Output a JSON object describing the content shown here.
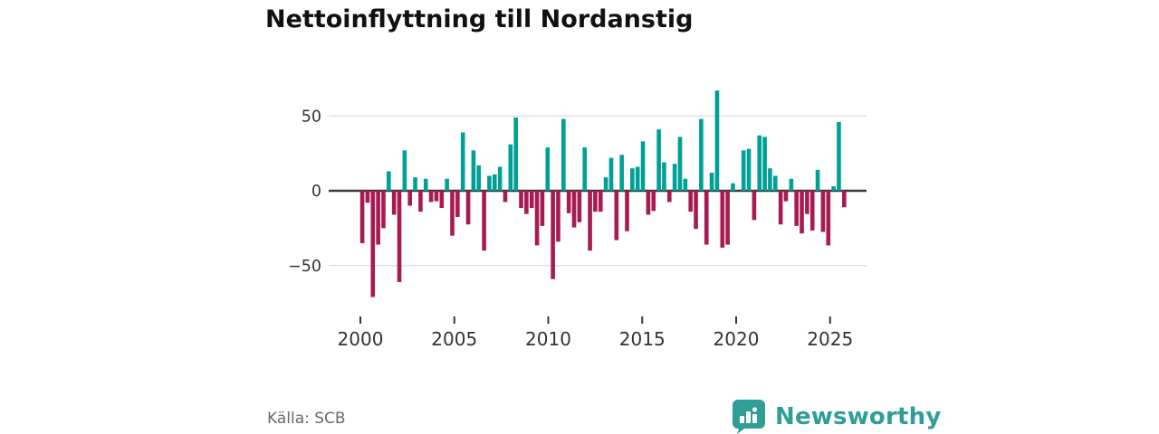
{
  "title": "Nettoinflyttning till Nordanstig",
  "source": "Källa: SCB",
  "brand": {
    "name": "Newsworthy",
    "color": "#2f9e96",
    "icon": "bar-chart-speech-bubble"
  },
  "colors": {
    "positive_bar": "#00a096",
    "negative_bar": "#a81b52",
    "zero_line": "#3b3b3b",
    "grid_line": "#dddddd",
    "title_text": "#111111",
    "axis_text": "#333333",
    "source_text": "#666a6e",
    "background": "#ffffff"
  },
  "chart_data": {
    "type": "bar",
    "title": "Nettoinflyttning till Nordanstig",
    "xlabel": "",
    "ylabel": "",
    "x_ticks": [
      "2000",
      "2005",
      "2010",
      "2015",
      "2020",
      "2025"
    ],
    "x_tick_years": [
      2000,
      2005,
      2010,
      2015,
      2020,
      2025
    ],
    "y_ticks": [
      "50",
      "0",
      "−50"
    ],
    "y_tick_values": [
      50,
      0,
      -50
    ],
    "ylim": [
      -75,
      70
    ],
    "x_span_years": [
      2000.1,
      2025.75
    ],
    "grid": "horizontal",
    "legend": "none",
    "series_note": "net migration per period, teal = positive, crimson = negative",
    "values": [
      -35,
      -8,
      -71,
      -36,
      -25,
      13,
      -16,
      -61,
      27,
      -10,
      9,
      -14,
      8,
      -7.5,
      -7,
      -11.5,
      8,
      -30,
      -17.5,
      39,
      -22.5,
      27,
      17,
      -40,
      10,
      11,
      16,
      -7.5,
      31,
      49,
      -11.5,
      -15.5,
      -11.5,
      -36.5,
      -23.5,
      29,
      -59,
      -34,
      48,
      -15,
      -24.5,
      -21,
      29,
      -40,
      -14,
      -14,
      9,
      22,
      -33,
      24,
      -27,
      15,
      16,
      33,
      -16,
      -13.5,
      41,
      19,
      -7.5,
      18,
      36,
      8,
      -14,
      -25.5,
      48,
      -36,
      12,
      67,
      -38,
      -36,
      5,
      0,
      27,
      28,
      -19.5,
      37,
      36,
      15,
      10,
      -22.5,
      -7,
      8,
      -23.5,
      -28.5,
      -15.5,
      -26.5,
      14,
      -27.5,
      -36.5,
      3,
      46,
      -11
    ]
  }
}
